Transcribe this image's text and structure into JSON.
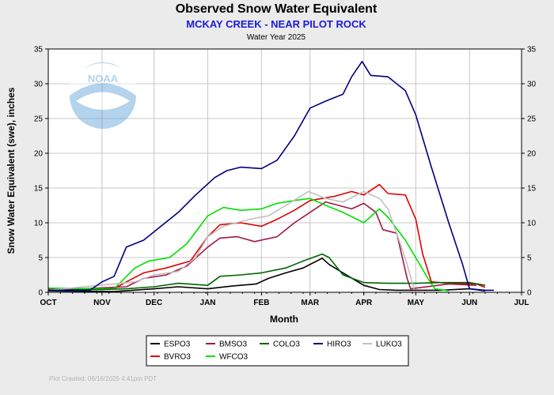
{
  "header": {
    "title": "Observed Snow Water Equivalent",
    "subtitle": "MCKAY CREEK - NEAR PILOT ROCK",
    "water_year": "Water Year 2025"
  },
  "footer": {
    "plot_created": "Plot Created:  06/16/2025 4:41pm PDT"
  },
  "logo": {
    "text": "NOAA"
  },
  "colors": {
    "background": "#ebebeb",
    "plot_area": "#ffffff",
    "subtitle": "#1a1adb",
    "credit": "#b3b3b3"
  },
  "chart_data": {
    "type": "line",
    "title": "Observed Snow Water Equivalent",
    "xlabel": "Month",
    "ylabel": "Snow Water Equivalent (swe),  inches",
    "ylim": [
      0,
      35
    ],
    "yticks": [
      0,
      5,
      10,
      15,
      20,
      25,
      30,
      35
    ],
    "xlim": [
      "2024-10-01",
      "2025-07-01"
    ],
    "months": [
      "OCT",
      "NOV",
      "DEC",
      "JAN",
      "FEB",
      "MAR",
      "APR",
      "MAY",
      "JUN",
      "JUL"
    ],
    "grid": true,
    "y_axis_mirrored_right": true,
    "legend_position": "bottom",
    "series": [
      {
        "name": "ESPO3",
        "color": "#000000",
        "points": [
          [
            "2024-10-01",
            0.2
          ],
          [
            "2024-11-08",
            0.1
          ],
          [
            "2024-12-01",
            0.5
          ],
          [
            "2024-12-15",
            0.8
          ],
          [
            "2025-01-01",
            0.5
          ],
          [
            "2025-01-15",
            0.9
          ],
          [
            "2025-01-29",
            1.2
          ],
          [
            "2025-02-05",
            2.0
          ],
          [
            "2025-02-15",
            2.8
          ],
          [
            "2025-02-25",
            3.5
          ],
          [
            "2025-03-08",
            4.9
          ],
          [
            "2025-03-12",
            4.0
          ],
          [
            "2025-03-20",
            2.8
          ],
          [
            "2025-04-01",
            1.0
          ],
          [
            "2025-04-10",
            0.4
          ],
          [
            "2025-04-20",
            0.3
          ],
          [
            "2025-05-01",
            0.3
          ],
          [
            "2025-05-15",
            0.3
          ],
          [
            "2025-06-01",
            0.5
          ],
          [
            "2025-06-10",
            0.2
          ]
        ]
      },
      {
        "name": "BVRO3",
        "color": "#e00000",
        "points": [
          [
            "2024-10-01",
            0.5
          ],
          [
            "2024-11-08",
            0.5
          ],
          [
            "2024-11-15",
            1.5
          ],
          [
            "2024-11-25",
            2.8
          ],
          [
            "2024-12-08",
            3.5
          ],
          [
            "2024-12-22",
            4.5
          ],
          [
            "2025-01-01",
            8.0
          ],
          [
            "2025-01-08",
            9.7
          ],
          [
            "2025-01-20",
            10.0
          ],
          [
            "2025-02-01",
            9.5
          ],
          [
            "2025-02-10",
            10.5
          ],
          [
            "2025-02-20",
            11.8
          ],
          [
            "2025-03-01",
            13.2
          ],
          [
            "2025-03-15",
            13.8
          ],
          [
            "2025-03-25",
            14.5
          ],
          [
            "2025-04-01",
            14.0
          ],
          [
            "2025-04-10",
            15.5
          ],
          [
            "2025-04-15",
            14.2
          ],
          [
            "2025-04-25",
            14.0
          ],
          [
            "2025-05-01",
            10.5
          ],
          [
            "2025-05-05",
            5.5
          ],
          [
            "2025-05-10",
            1.5
          ],
          [
            "2025-05-20",
            1.3
          ],
          [
            "2025-06-05",
            1.2
          ],
          [
            "2025-06-10",
            0.7
          ]
        ]
      },
      {
        "name": "BMSO3",
        "color": "#a0184a",
        "points": [
          [
            "2024-10-01",
            0.3
          ],
          [
            "2024-11-15",
            0.8
          ],
          [
            "2024-11-25",
            2.0
          ],
          [
            "2024-12-08",
            2.5
          ],
          [
            "2024-12-20",
            3.8
          ],
          [
            "2025-01-01",
            6.5
          ],
          [
            "2025-01-08",
            7.8
          ],
          [
            "2025-01-18",
            8.0
          ],
          [
            "2025-01-28",
            7.3
          ],
          [
            "2025-02-10",
            8.0
          ],
          [
            "2025-02-20",
            10.0
          ],
          [
            "2025-03-01",
            11.5
          ],
          [
            "2025-03-10",
            13.0
          ],
          [
            "2025-03-25",
            12.0
          ],
          [
            "2025-04-01",
            12.8
          ],
          [
            "2025-04-08",
            11.5
          ],
          [
            "2025-04-12",
            9.0
          ],
          [
            "2025-04-20",
            8.5
          ],
          [
            "2025-04-26",
            2.0
          ],
          [
            "2025-04-28",
            0.5
          ],
          [
            "2025-05-20",
            1.2
          ],
          [
            "2025-06-05",
            1.0
          ]
        ]
      },
      {
        "name": "WFCO3",
        "color": "#00e000",
        "points": [
          [
            "2024-10-01",
            0.6
          ],
          [
            "2024-11-08",
            0.5
          ],
          [
            "2024-11-20",
            3.5
          ],
          [
            "2024-11-28",
            4.5
          ],
          [
            "2024-12-10",
            5.0
          ],
          [
            "2024-12-20",
            7.0
          ],
          [
            "2025-01-01",
            11.0
          ],
          [
            "2025-01-10",
            12.2
          ],
          [
            "2025-01-20",
            11.8
          ],
          [
            "2025-02-01",
            12.0
          ],
          [
            "2025-02-10",
            12.8
          ],
          [
            "2025-02-20",
            13.2
          ],
          [
            "2025-03-01",
            13.5
          ],
          [
            "2025-03-10",
            12.5
          ],
          [
            "2025-03-20",
            11.5
          ],
          [
            "2025-04-01",
            10.0
          ],
          [
            "2025-04-10",
            12.0
          ],
          [
            "2025-04-15",
            10.8
          ],
          [
            "2025-04-25",
            7.5
          ],
          [
            "2025-05-08",
            2.0
          ],
          [
            "2025-05-12",
            0.5
          ],
          [
            "2025-05-20",
            0.2
          ]
        ]
      },
      {
        "name": "COLO3",
        "color": "#006400",
        "points": [
          [
            "2024-10-01",
            0.3
          ],
          [
            "2024-11-01",
            0.4
          ],
          [
            "2024-11-15",
            0.5
          ],
          [
            "2024-12-01",
            0.8
          ],
          [
            "2024-12-15",
            1.3
          ],
          [
            "2025-01-01",
            1.0
          ],
          [
            "2025-01-08",
            2.3
          ],
          [
            "2025-01-20",
            2.5
          ],
          [
            "2025-02-01",
            2.8
          ],
          [
            "2025-02-15",
            3.5
          ],
          [
            "2025-02-25",
            4.5
          ],
          [
            "2025-03-08",
            5.5
          ],
          [
            "2025-03-12",
            5.0
          ],
          [
            "2025-03-20",
            2.5
          ],
          [
            "2025-04-01",
            1.4
          ],
          [
            "2025-04-15",
            1.3
          ],
          [
            "2025-05-01",
            1.3
          ],
          [
            "2025-05-15",
            1.4
          ],
          [
            "2025-06-01",
            1.4
          ],
          [
            "2025-06-10",
            1.0
          ]
        ]
      },
      {
        "name": "LUKO3",
        "color": "#c0c0c0",
        "points": [
          [
            "2024-10-01",
            0.3
          ],
          [
            "2024-11-20",
            1.5
          ],
          [
            "2024-12-01",
            2.5
          ],
          [
            "2024-12-15",
            3.0
          ],
          [
            "2024-12-25",
            5.0
          ],
          [
            "2025-01-01",
            8.0
          ],
          [
            "2025-01-10",
            9.5
          ],
          [
            "2025-01-25",
            10.5
          ],
          [
            "2025-02-05",
            11.0
          ],
          [
            "2025-02-15",
            12.5
          ],
          [
            "2025-02-28",
            14.5
          ],
          [
            "2025-03-10",
            13.5
          ],
          [
            "2025-03-20",
            13.0
          ],
          [
            "2025-04-01",
            14.5
          ],
          [
            "2025-04-10",
            13.5
          ],
          [
            "2025-04-15",
            12.0
          ],
          [
            "2025-04-22",
            7.0
          ],
          [
            "2025-04-26",
            4.0
          ],
          [
            "2025-04-30",
            0.5
          ]
        ]
      },
      {
        "name": "HIRO3",
        "color": "#000080",
        "points": [
          [
            "2024-10-01",
            0.3
          ],
          [
            "2024-10-25",
            0.3
          ],
          [
            "2024-11-01",
            1.5
          ],
          [
            "2024-11-08",
            2.3
          ],
          [
            "2024-11-15",
            6.5
          ],
          [
            "2024-11-25",
            7.5
          ],
          [
            "2024-12-05",
            9.5
          ],
          [
            "2024-12-15",
            11.5
          ],
          [
            "2024-12-25",
            14.0
          ],
          [
            "2025-01-05",
            16.5
          ],
          [
            "2025-01-12",
            17.5
          ],
          [
            "2025-01-20",
            18.0
          ],
          [
            "2025-02-01",
            17.8
          ],
          [
            "2025-02-10",
            19.0
          ],
          [
            "2025-02-20",
            22.5
          ],
          [
            "2025-03-01",
            26.5
          ],
          [
            "2025-03-10",
            27.5
          ],
          [
            "2025-03-20",
            28.5
          ],
          [
            "2025-03-25",
            31.0
          ],
          [
            "2025-03-31",
            33.2
          ],
          [
            "2025-04-05",
            31.2
          ],
          [
            "2025-04-15",
            31.0
          ],
          [
            "2025-04-25",
            29.0
          ],
          [
            "2025-05-01",
            25.5
          ],
          [
            "2025-05-10",
            18.0
          ],
          [
            "2025-05-20",
            10.0
          ],
          [
            "2025-05-28",
            4.0
          ],
          [
            "2025-06-01",
            0.5
          ],
          [
            "2025-06-10",
            0.3
          ],
          [
            "2025-06-15",
            0.3
          ]
        ]
      }
    ]
  }
}
